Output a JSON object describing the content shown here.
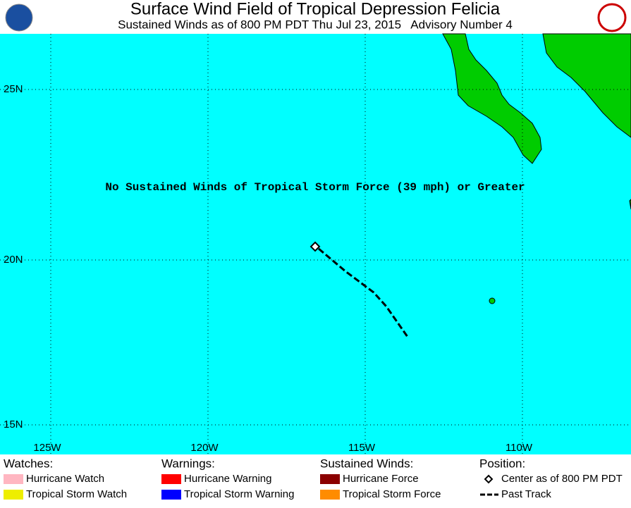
{
  "header": {
    "title": "Surface Wind Field of Tropical Depression Felicia",
    "subtitle": "Sustained Winds as of 800 PM PDT Thu Jul 23, 2015   Advisory Number 4"
  },
  "map": {
    "lat_labels": [
      "25N",
      "20N",
      "15N"
    ],
    "lon_labels": [
      "125W",
      "120W",
      "115W",
      "110W"
    ],
    "annotation": "No Sustained Winds of Tropical Storm Force (39 mph) or Greater"
  },
  "legend": [
    {
      "heading": "Watches:",
      "items": [
        "Hurricane Watch",
        "Tropical Storm Watch"
      ]
    },
    {
      "heading": "Warnings:",
      "items": [
        "Hurricane Warning",
        "Tropical Storm Warning"
      ]
    },
    {
      "heading": "Sustained Winds:",
      "items": [
        "Hurricane Force",
        "Tropical Storm Force"
      ]
    },
    {
      "heading": "Position:",
      "items": [
        "Center as of 800 PM PDT",
        "Past Track"
      ]
    }
  ]
}
